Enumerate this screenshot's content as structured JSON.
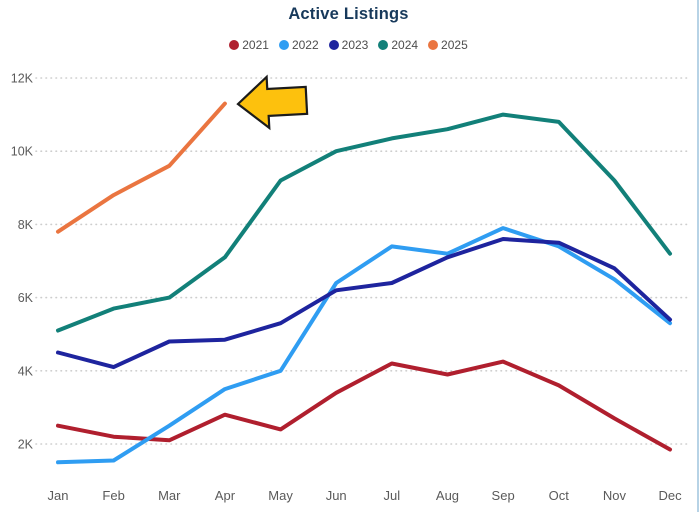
{
  "title": "Active Listings",
  "colors": {
    "title_text": "#17395B",
    "axis_text": "#5A5A5A",
    "legend_text": "#4E4E4E",
    "gridline": "#CDCDCD",
    "background": "#FFFFFF",
    "window_edge": "#B7D3E6"
  },
  "chart_data": {
    "type": "line",
    "title": "Active Listings",
    "x": [
      "Jan",
      "Feb",
      "Mar",
      "Apr",
      "May",
      "Jun",
      "Jul",
      "Aug",
      "Sep",
      "Oct",
      "Nov",
      "Dec"
    ],
    "series": [
      {
        "name": "2021",
        "color": "#B01F2E",
        "values": [
          2500,
          2200,
          2100,
          2800,
          2400,
          3400,
          4200,
          3900,
          4250,
          3600,
          2700,
          1850
        ]
      },
      {
        "name": "2022",
        "color": "#2F9DF2",
        "values": [
          1500,
          1550,
          2500,
          3500,
          4000,
          6400,
          7400,
          7200,
          7900,
          7400,
          6500,
          5300
        ]
      },
      {
        "name": "2023",
        "color": "#1E249E",
        "values": [
          4500,
          4100,
          4800,
          4850,
          5300,
          6200,
          6400,
          7100,
          7600,
          7500,
          6800,
          5400
        ]
      },
      {
        "name": "2024",
        "color": "#128079",
        "values": [
          5100,
          5700,
          6000,
          7100,
          9200,
          10000,
          10350,
          10600,
          11000,
          10800,
          9200,
          7200
        ]
      },
      {
        "name": "2025",
        "color": "#EA7540",
        "values": [
          7800,
          8800,
          9600,
          11300
        ]
      }
    ],
    "y_ticks": [
      {
        "label": "2K",
        "value": 2000
      },
      {
        "label": "4K",
        "value": 4000
      },
      {
        "label": "6K",
        "value": 6000
      },
      {
        "label": "8K",
        "value": 8000
      },
      {
        "label": "10K",
        "value": 10000
      },
      {
        "label": "12K",
        "value": 12000
      }
    ],
    "ylim": [
      1200,
      12400
    ],
    "grid": "horizontal-dotted",
    "legend_position": "top",
    "xlabel": "",
    "ylabel": ""
  },
  "annotation": {
    "shape": "left-arrow",
    "fill": "#FDC10D",
    "stroke": "#1B1B1B"
  }
}
